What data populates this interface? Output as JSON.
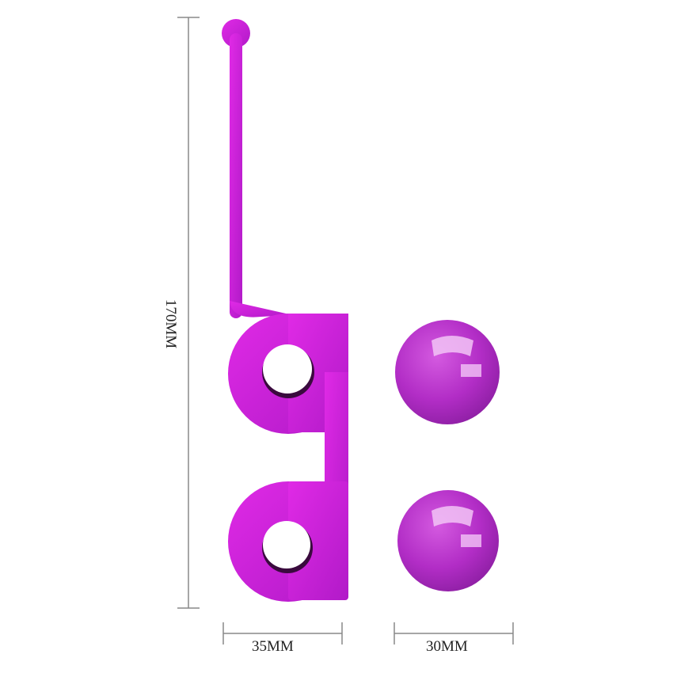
{
  "dimensions": {
    "height_label": "170MM",
    "stick_width_label": "35MM",
    "ball_width_label": "30MM"
  },
  "colors": {
    "silicone": "#c81fd6",
    "silicone_light": "#e23ae8",
    "ball": "#b42fc8",
    "dimension_line": "#888888"
  }
}
